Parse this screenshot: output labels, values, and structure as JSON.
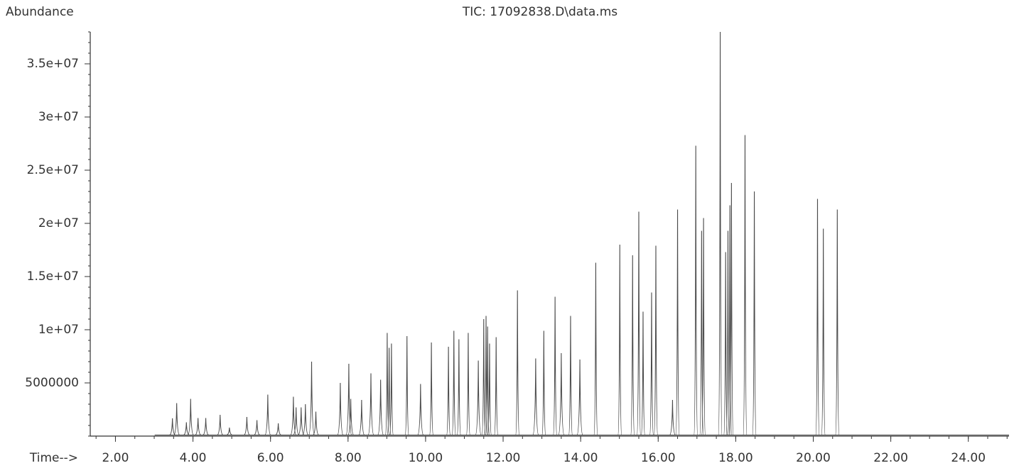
{
  "chart_data": {
    "type": "peak",
    "title": "TIC: 17092838.D\\data.ms",
    "y_label": "Abundance",
    "x_label": "Time-->",
    "color": "#4a4a4a",
    "xlim": [
      1.35,
      25.05
    ],
    "ylim": [
      0,
      38000000
    ],
    "xticks": [
      {
        "value": 2,
        "label": "2.00"
      },
      {
        "value": 4,
        "label": "4.00"
      },
      {
        "value": 6,
        "label": "6.00"
      },
      {
        "value": 8,
        "label": "8.00"
      },
      {
        "value": 10,
        "label": "10.00"
      },
      {
        "value": 12,
        "label": "12.00"
      },
      {
        "value": 14,
        "label": "14.00"
      },
      {
        "value": 16,
        "label": "16.00"
      },
      {
        "value": 18,
        "label": "18.00"
      },
      {
        "value": 20,
        "label": "20.00"
      },
      {
        "value": 22,
        "label": "22.00"
      },
      {
        "value": 24,
        "label": "24.00"
      }
    ],
    "yticks": [
      5000000,
      {
        "value": 10000000,
        "label": "1e+07"
      },
      {
        "value": 15000000,
        "label": "1.5e+07"
      },
      {
        "value": 20000000,
        "label": "2e+07"
      },
      {
        "value": 25000000,
        "label": "2.5e+07"
      },
      {
        "value": 30000000,
        "label": "3e+07"
      },
      {
        "value": 35000000,
        "label": "3.5e+07"
      }
    ],
    "x": [
      3.47,
      3.58,
      3.83,
      3.94,
      4.13,
      4.33,
      4.7,
      4.94,
      5.39,
      5.65,
      5.93,
      6.2,
      6.59,
      6.66,
      6.79,
      6.9,
      7.06,
      7.17,
      7.8,
      8.02,
      8.07,
      8.35,
      8.59,
      8.84,
      9.01,
      9.06,
      9.12,
      9.52,
      9.87,
      10.15,
      10.59,
      10.73,
      10.86,
      11.1,
      11.36,
      11.5,
      11.56,
      11.6,
      11.65,
      11.82,
      12.37,
      12.84,
      13.05,
      13.34,
      13.5,
      13.74,
      13.98,
      14.39,
      15.01,
      15.34,
      15.5,
      15.61,
      15.83,
      15.94,
      16.37,
      16.5,
      16.97,
      17.12,
      17.17,
      17.6,
      17.74,
      17.8,
      17.85,
      17.89,
      18.24,
      18.48,
      20.11,
      20.26,
      20.62
    ],
    "values": [
      1670000,
      3100000,
      1300000,
      3500000,
      1700000,
      1700000,
      2000000,
      800000,
      1800000,
      1500000,
      3900000,
      1200000,
      3700000,
      2700000,
      2700000,
      3000000,
      7000000,
      2300000,
      5000000,
      6800000,
      3500000,
      3400000,
      5900000,
      5300000,
      9700000,
      8300000,
      8700000,
      9400000,
      4900000,
      8800000,
      8400000,
      9900000,
      9100000,
      9700000,
      7100000,
      11000000,
      11300000,
      10300000,
      8700000,
      9300000,
      13700000,
      7300000,
      9900000,
      13100000,
      7800000,
      11300000,
      7200000,
      16300000,
      18000000,
      17000000,
      21100000,
      11700000,
      13500000,
      17900000,
      3400000,
      21300000,
      27300000,
      19300000,
      20500000,
      38000000,
      17300000,
      19300000,
      21700000,
      23800000,
      28300000,
      23000000,
      22300000,
      19500000,
      21300000
    ]
  }
}
